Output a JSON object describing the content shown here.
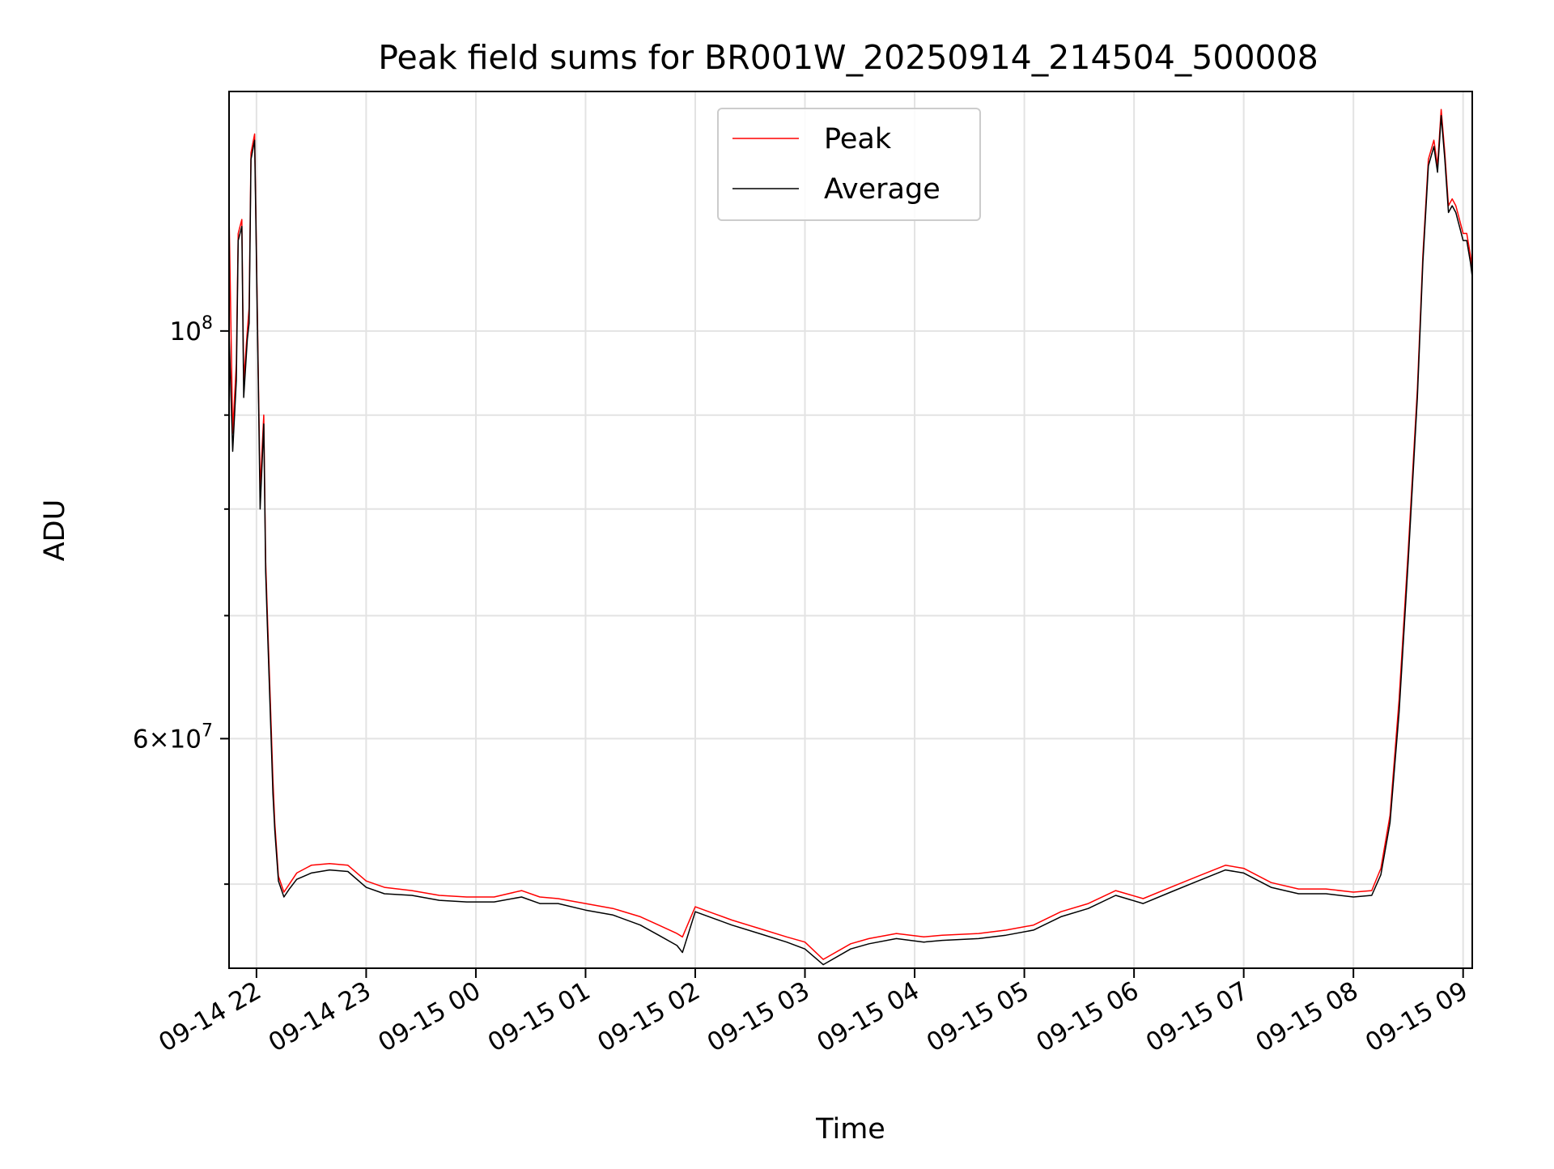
{
  "chart_data": {
    "type": "line",
    "title": "Peak field sums for BR001W_20250914_214504_500008",
    "xlabel": "Time",
    "ylabel": "ADU",
    "yscale": "log",
    "xlim": [
      "2025-09-14 21:45",
      "2025-09-15 09:05"
    ],
    "ylim": [
      45000000,
      135000000
    ],
    "grid": true,
    "legend_position": "top-center",
    "x_ticks": [
      {
        "t": "2025-09-14 22:00",
        "label": "09-14 22"
      },
      {
        "t": "2025-09-14 23:00",
        "label": "09-14 23"
      },
      {
        "t": "2025-09-15 00:00",
        "label": "09-15 00"
      },
      {
        "t": "2025-09-15 01:00",
        "label": "09-15 01"
      },
      {
        "t": "2025-09-15 02:00",
        "label": "09-15 02"
      },
      {
        "t": "2025-09-15 03:00",
        "label": "09-15 03"
      },
      {
        "t": "2025-09-15 04:00",
        "label": "09-15 04"
      },
      {
        "t": "2025-09-15 05:00",
        "label": "09-15 05"
      },
      {
        "t": "2025-09-15 06:00",
        "label": "09-15 06"
      },
      {
        "t": "2025-09-15 07:00",
        "label": "09-15 07"
      },
      {
        "t": "2025-09-15 08:00",
        "label": "09-15 08"
      },
      {
        "t": "2025-09-15 09:00",
        "label": "09-15 09"
      }
    ],
    "y_major_ticks": [
      {
        "value": 60000000,
        "base": "6×10",
        "exp": "7"
      },
      {
        "value": 100000000,
        "base": "10",
        "exp": "8"
      }
    ],
    "y_minor_ticks": [
      50000000,
      70000000,
      80000000,
      90000000
    ],
    "series": [
      {
        "name": "Peak",
        "color": "#ff0000",
        "x": [
          "2025-09-14 21:45",
          "2025-09-14 21:47",
          "2025-09-14 21:49",
          "2025-09-14 21:50",
          "2025-09-14 21:52",
          "2025-09-14 21:53",
          "2025-09-14 21:55",
          "2025-09-14 21:56",
          "2025-09-14 21:57",
          "2025-09-14 21:59",
          "2025-09-14 22:01",
          "2025-09-14 22:02",
          "2025-09-14 22:04",
          "2025-09-14 22:05",
          "2025-09-14 22:06",
          "2025-09-14 22:08",
          "2025-09-14 22:09",
          "2025-09-14 22:10",
          "2025-09-14 22:12",
          "2025-09-14 22:15",
          "2025-09-14 22:18",
          "2025-09-14 22:22",
          "2025-09-14 22:30",
          "2025-09-14 22:40",
          "2025-09-14 22:50",
          "2025-09-14 23:00",
          "2025-09-14 23:10",
          "2025-09-14 23:25",
          "2025-09-14 23:40",
          "2025-09-14 23:55",
          "2025-09-15 00:10",
          "2025-09-15 00:25",
          "2025-09-15 00:35",
          "2025-09-15 00:45",
          "2025-09-15 01:00",
          "2025-09-15 01:15",
          "2025-09-15 01:30",
          "2025-09-15 01:40",
          "2025-09-15 01:50",
          "2025-09-15 01:53",
          "2025-09-15 02:00",
          "2025-09-15 02:10",
          "2025-09-15 02:20",
          "2025-09-15 02:35",
          "2025-09-15 02:50",
          "2025-09-15 03:00",
          "2025-09-15 03:10",
          "2025-09-15 03:25",
          "2025-09-15 03:35",
          "2025-09-15 03:50",
          "2025-09-15 04:05",
          "2025-09-15 04:15",
          "2025-09-15 04:35",
          "2025-09-15 04:50",
          "2025-09-15 05:05",
          "2025-09-15 05:20",
          "2025-09-15 05:35",
          "2025-09-15 05:50",
          "2025-09-15 06:05",
          "2025-09-15 06:20",
          "2025-09-15 06:35",
          "2025-09-15 06:50",
          "2025-09-15 07:00",
          "2025-09-15 07:15",
          "2025-09-15 07:30",
          "2025-09-15 07:45",
          "2025-09-15 08:00",
          "2025-09-15 08:10",
          "2025-09-15 08:15",
          "2025-09-15 08:20",
          "2025-09-15 08:25",
          "2025-09-15 08:30",
          "2025-09-15 08:35",
          "2025-09-15 08:38",
          "2025-09-15 08:41",
          "2025-09-15 08:44",
          "2025-09-15 08:46",
          "2025-09-15 08:48",
          "2025-09-15 08:50",
          "2025-09-15 08:52",
          "2025-09-15 08:54",
          "2025-09-15 08:56",
          "2025-09-15 08:58",
          "2025-09-15 09:00",
          "2025-09-15 09:02",
          "2025-09-15 09:04",
          "2025-09-15 09:05"
        ],
        "y": [
          116000000,
          88000000,
          96000000,
          113000000,
          115000000,
          94000000,
          100000000,
          103000000,
          125000000,
          128000000,
          95000000,
          82000000,
          90000000,
          75000000,
          70000000,
          61000000,
          57000000,
          54000000,
          50500000,
          49500000,
          50000000,
          50700000,
          51200000,
          51300000,
          51200000,
          50200000,
          49800000,
          49600000,
          49300000,
          49200000,
          49200000,
          49600000,
          49200000,
          49100000,
          48800000,
          48500000,
          48000000,
          47500000,
          47000000,
          46800000,
          48600000,
          48200000,
          47800000,
          47300000,
          46800000,
          46500000,
          45500000,
          46400000,
          46700000,
          47000000,
          46800000,
          46900000,
          47000000,
          47200000,
          47500000,
          48300000,
          48800000,
          49600000,
          49100000,
          49800000,
          50500000,
          51200000,
          51000000,
          50100000,
          49700000,
          49700000,
          49500000,
          49600000,
          51000000,
          54500000,
          63000000,
          76000000,
          93000000,
          110000000,
          124000000,
          127000000,
          123000000,
          132000000,
          125000000,
          117000000,
          118000000,
          117000000,
          115000000,
          113000000,
          113000000,
          110000000,
          108000000
        ]
      },
      {
        "name": "Average",
        "color": "#000000",
        "x": [
          "2025-09-14 21:45",
          "2025-09-14 21:47",
          "2025-09-14 21:49",
          "2025-09-14 21:50",
          "2025-09-14 21:52",
          "2025-09-14 21:53",
          "2025-09-14 21:55",
          "2025-09-14 21:56",
          "2025-09-14 21:57",
          "2025-09-14 21:59",
          "2025-09-14 22:01",
          "2025-09-14 22:02",
          "2025-09-14 22:04",
          "2025-09-14 22:05",
          "2025-09-14 22:06",
          "2025-09-14 22:08",
          "2025-09-14 22:09",
          "2025-09-14 22:10",
          "2025-09-14 22:12",
          "2025-09-14 22:15",
          "2025-09-14 22:18",
          "2025-09-14 22:22",
          "2025-09-14 22:30",
          "2025-09-14 22:40",
          "2025-09-14 22:50",
          "2025-09-14 23:00",
          "2025-09-14 23:10",
          "2025-09-14 23:25",
          "2025-09-14 23:40",
          "2025-09-14 23:55",
          "2025-09-15 00:10",
          "2025-09-15 00:25",
          "2025-09-15 00:35",
          "2025-09-15 00:45",
          "2025-09-15 01:00",
          "2025-09-15 01:15",
          "2025-09-15 01:30",
          "2025-09-15 01:40",
          "2025-09-15 01:50",
          "2025-09-15 01:53",
          "2025-09-15 02:00",
          "2025-09-15 02:10",
          "2025-09-15 02:20",
          "2025-09-15 02:35",
          "2025-09-15 02:50",
          "2025-09-15 03:00",
          "2025-09-15 03:10",
          "2025-09-15 03:25",
          "2025-09-15 03:35",
          "2025-09-15 03:50",
          "2025-09-15 04:05",
          "2025-09-15 04:15",
          "2025-09-15 04:35",
          "2025-09-15 04:50",
          "2025-09-15 05:05",
          "2025-09-15 05:20",
          "2025-09-15 05:35",
          "2025-09-15 05:50",
          "2025-09-15 06:05",
          "2025-09-15 06:20",
          "2025-09-15 06:35",
          "2025-09-15 06:50",
          "2025-09-15 07:00",
          "2025-09-15 07:15",
          "2025-09-15 07:30",
          "2025-09-15 07:45",
          "2025-09-15 08:00",
          "2025-09-15 08:10",
          "2025-09-15 08:15",
          "2025-09-15 08:20",
          "2025-09-15 08:25",
          "2025-09-15 08:30",
          "2025-09-15 08:35",
          "2025-09-15 08:38",
          "2025-09-15 08:41",
          "2025-09-15 08:44",
          "2025-09-15 08:46",
          "2025-09-15 08:48",
          "2025-09-15 08:50",
          "2025-09-15 08:52",
          "2025-09-15 08:54",
          "2025-09-15 08:56",
          "2025-09-15 08:58",
          "2025-09-15 09:00",
          "2025-09-15 09:02",
          "2025-09-15 09:04",
          "2025-09-15 09:05"
        ],
        "y": [
          100000000,
          86000000,
          94000000,
          112000000,
          114000000,
          92000000,
          99000000,
          101000000,
          124000000,
          127000000,
          94000000,
          80000000,
          89000000,
          74000000,
          69000000,
          60000000,
          56000000,
          53500000,
          50200000,
          49200000,
          49700000,
          50300000,
          50700000,
          50900000,
          50800000,
          49800000,
          49400000,
          49300000,
          49000000,
          48900000,
          48900000,
          49200000,
          48800000,
          48800000,
          48400000,
          48100000,
          47500000,
          46900000,
          46300000,
          45900000,
          48300000,
          47900000,
          47500000,
          47000000,
          46500000,
          46100000,
          45200000,
          46100000,
          46400000,
          46700000,
          46500000,
          46600000,
          46700000,
          46900000,
          47200000,
          48000000,
          48500000,
          49300000,
          48800000,
          49500000,
          50200000,
          50900000,
          50700000,
          49800000,
          49400000,
          49400000,
          49200000,
          49300000,
          50600000,
          54000000,
          62000000,
          75000000,
          92000000,
          109000000,
          123000000,
          126000000,
          122000000,
          131000000,
          124000000,
          116000000,
          117000000,
          116000000,
          114000000,
          112000000,
          112000000,
          109000000,
          107000000
        ]
      }
    ]
  }
}
